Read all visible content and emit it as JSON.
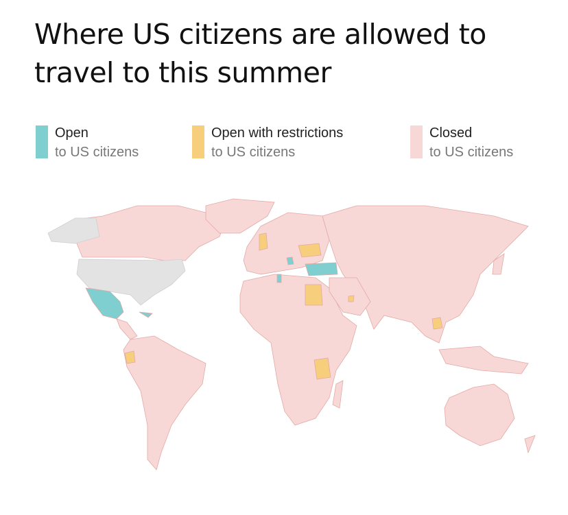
{
  "title": "Where US citizens are allowed to travel to this summer",
  "legend": [
    {
      "label": "Open",
      "sublabel": "to US citizens",
      "color": "#7fcfd0"
    },
    {
      "label": "Open with restrictions",
      "sublabel": "to US citizens",
      "color": "#f7cf7c"
    },
    {
      "label": "Closed",
      "sublabel": "to US citizens",
      "color": "#f8d8d6"
    }
  ]
}
